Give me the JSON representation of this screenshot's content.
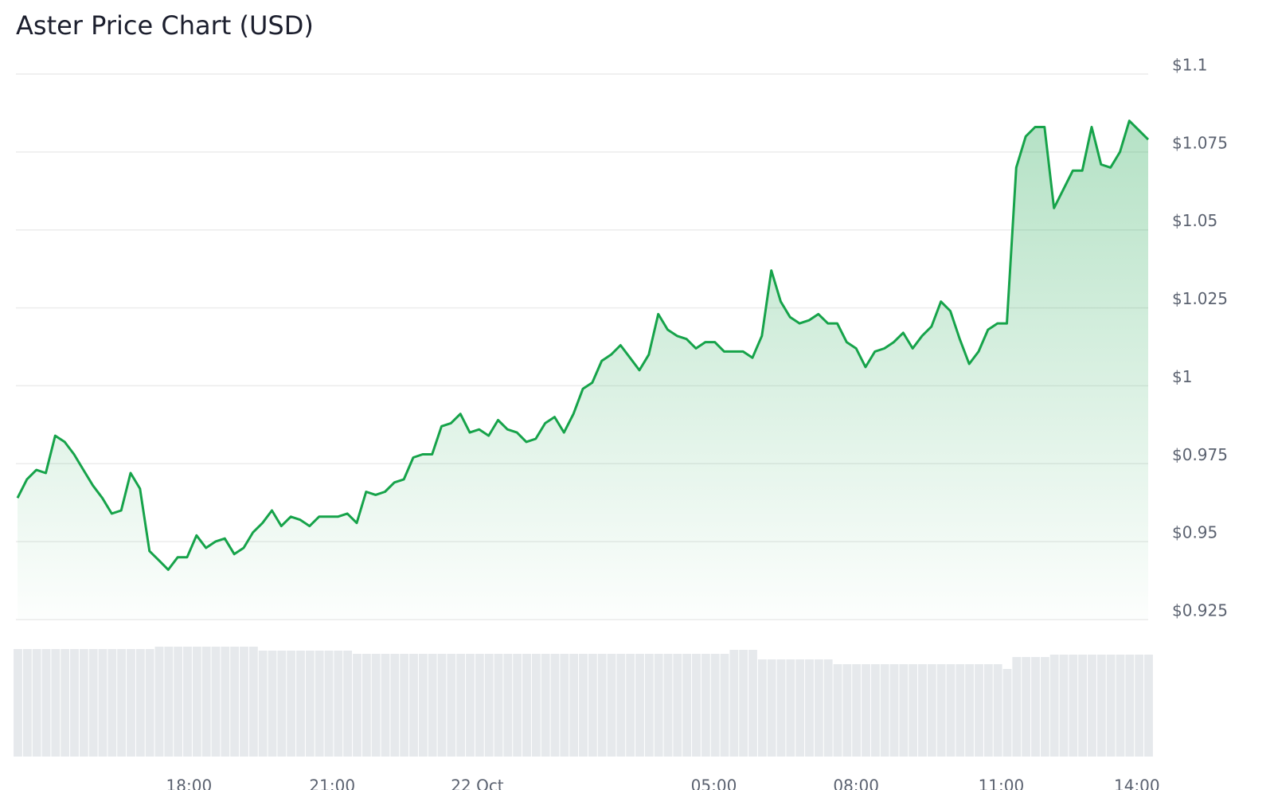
{
  "chart_data": {
    "type": "line",
    "title": "Aster Price Chart (USD)",
    "x": [
      0,
      1,
      2,
      3,
      4,
      5,
      6,
      7,
      8,
      9,
      10,
      11,
      12,
      13,
      14,
      15,
      16,
      17,
      18,
      19,
      20,
      21,
      22,
      23,
      24,
      25,
      26,
      27,
      28,
      29,
      30,
      31,
      32,
      33,
      34,
      35,
      36,
      37,
      38,
      39,
      40,
      41,
      42,
      43,
      44,
      45,
      46,
      47,
      48,
      49,
      50,
      51,
      52,
      53,
      54,
      55,
      56,
      57,
      58,
      59,
      60,
      61,
      62,
      63,
      64,
      65,
      66,
      67,
      68,
      69,
      70,
      71,
      72,
      73,
      74,
      75,
      76,
      77,
      78,
      79,
      80,
      81,
      82,
      83,
      84,
      85,
      86,
      87,
      88,
      89,
      90,
      91,
      92,
      93,
      94,
      95,
      96,
      97,
      98,
      99,
      100,
      101,
      102,
      103,
      104,
      105,
      106,
      107,
      108,
      109,
      110,
      111,
      112,
      113,
      114,
      115,
      116,
      117,
      118,
      119,
      120
    ],
    "xlim": [
      0,
      120
    ],
    "xticks": [
      {
        "value": 18.2,
        "label": "18:00"
      },
      {
        "value": 33.4,
        "label": "21:00"
      },
      {
        "value": 48.8,
        "label": "22 Oct"
      },
      {
        "value": 73.9,
        "label": "05:00"
      },
      {
        "value": 89.0,
        "label": "08:00"
      },
      {
        "value": 104.4,
        "label": "11:00"
      },
      {
        "value": 118.8,
        "label": "14:00"
      }
    ],
    "ylim": [
      0.925,
      1.1
    ],
    "yticks": [
      {
        "value": 1.1,
        "label": "$1.1"
      },
      {
        "value": 1.075,
        "label": "$1.075"
      },
      {
        "value": 1.05,
        "label": "$1.05"
      },
      {
        "value": 1.025,
        "label": "$1.025"
      },
      {
        "value": 1,
        "label": "$1"
      },
      {
        "value": 0.975,
        "label": "$0.975"
      },
      {
        "value": 0.95,
        "label": "$0.95"
      },
      {
        "value": 0.925,
        "label": "$0.925"
      }
    ],
    "y2lim": [
      0,
      140
    ],
    "grid": true,
    "series": [
      {
        "color": "#16a34a",
        "values": [
          0.964,
          0.97,
          0.973,
          0.972,
          0.984,
          0.982,
          0.978,
          0.973,
          0.968,
          0.964,
          0.959,
          0.96,
          0.972,
          0.967,
          0.947,
          0.944,
          0.941,
          0.945,
          0.945,
          0.952,
          0.948,
          0.95,
          0.951,
          0.946,
          0.948,
          0.953,
          0.956,
          0.96,
          0.955,
          0.958,
          0.957,
          0.955,
          0.958,
          0.958,
          0.958,
          0.959,
          0.956,
          0.966,
          0.965,
          0.966,
          0.969,
          0.97,
          0.977,
          0.978,
          0.978,
          0.987,
          0.988,
          0.991,
          0.985,
          0.986,
          0.984,
          0.989,
          0.986,
          0.985,
          0.982,
          0.983,
          0.988,
          0.99,
          0.985,
          0.991,
          0.999,
          1.001,
          1.008,
          1.01,
          1.013,
          1.009,
          1.005,
          1.01,
          1.023,
          1.018,
          1.016,
          1.015,
          1.012,
          1.014,
          1.014,
          1.011,
          1.011,
          1.011,
          1.009,
          1.016,
          1.037,
          1.027,
          1.022,
          1.02,
          1.021,
          1.023,
          1.02,
          1.02,
          1.014,
          1.012,
          1.006,
          1.011,
          1.012,
          1.014,
          1.017,
          1.012,
          1.016,
          1.019,
          1.027,
          1.024,
          1.015,
          1.007,
          1.011,
          1.018,
          1.02,
          1.02,
          1.07,
          1.08,
          1.083,
          1.083,
          1.057,
          1.063,
          1.069,
          1.069,
          1.083,
          1.071,
          1.07,
          1.075,
          1.085,
          1.082,
          1.079
        ]
      },
      {
        "color": "#e6e9ec",
        "axis": "y2",
        "values": [
          135,
          135,
          135,
          135,
          135,
          135,
          135,
          135,
          135,
          135,
          135,
          135,
          135,
          135,
          135,
          138,
          138,
          138,
          138,
          138,
          138,
          138,
          138,
          138,
          138,
          138,
          133,
          133,
          133,
          133,
          133,
          133,
          133,
          133,
          133,
          133,
          129,
          129,
          129,
          129,
          129,
          129,
          129,
          129,
          129,
          129,
          129,
          129,
          129,
          129,
          129,
          129,
          129,
          129,
          129,
          129,
          129,
          129,
          129,
          129,
          129,
          129,
          129,
          129,
          129,
          129,
          129,
          129,
          129,
          129,
          129,
          129,
          129,
          129,
          129,
          129,
          134,
          134,
          134,
          122,
          122,
          122,
          122,
          122,
          122,
          122,
          122,
          116,
          116,
          116,
          116,
          116,
          116,
          116,
          116,
          116,
          116,
          116,
          116,
          116,
          116,
          116,
          116,
          116,
          116,
          110,
          125,
          125,
          125,
          125,
          128,
          128,
          128,
          128,
          128,
          128,
          128,
          128,
          128,
          128,
          128
        ]
      }
    ]
  }
}
